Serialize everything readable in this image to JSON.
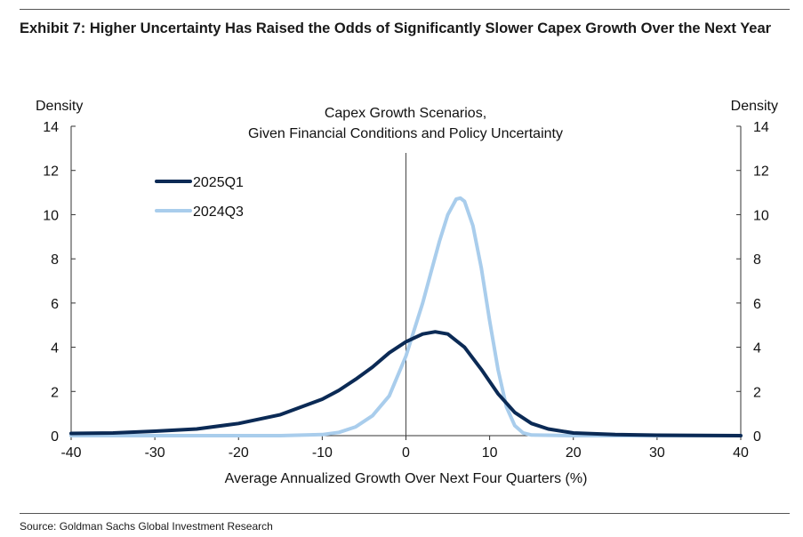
{
  "exhibit": {
    "title": "Exhibit 7: Higher Uncertainty Has Raised the Odds of Significantly Slower Capex Growth Over the Next Year",
    "source": "Source: Goldman Sachs Global Investment Research"
  },
  "chart_data": {
    "type": "line",
    "title_lines": [
      "Capex Growth Scenarios,",
      "Given Financial Conditions and Policy Uncertainty"
    ],
    "xlabel": "Average Annualized Growth Over Next Four Quarters (%)",
    "ylabel_left": "Density",
    "ylabel_right": "Density",
    "xlim": [
      -40,
      40
    ],
    "ylim": [
      0,
      14
    ],
    "x_ticks": [
      -40,
      -30,
      -20,
      -10,
      0,
      10,
      20,
      30,
      40
    ],
    "y_ticks": [
      0,
      2,
      4,
      6,
      8,
      10,
      12,
      14
    ],
    "vertical_reference_x": 0,
    "grid": false,
    "legend_position": "top-left",
    "series": [
      {
        "name": "2025Q1",
        "color": "#0b2a55",
        "x": [
          -40,
          -35,
          -30,
          -25,
          -20,
          -15,
          -10,
          -8,
          -6,
          -4,
          -2,
          0,
          2,
          3.5,
          5,
          7,
          9,
          11,
          13,
          15,
          17,
          20,
          25,
          30,
          35,
          40
        ],
        "y": [
          0.1,
          0.12,
          0.2,
          0.3,
          0.55,
          0.95,
          1.65,
          2.05,
          2.55,
          3.1,
          3.75,
          4.25,
          4.6,
          4.7,
          4.6,
          4.0,
          3.0,
          1.9,
          1.05,
          0.55,
          0.3,
          0.12,
          0.05,
          0.02,
          0.01,
          0.0
        ]
      },
      {
        "name": "2024Q3",
        "color": "#a9cdec",
        "x": [
          -40,
          -15,
          -10,
          -8,
          -6,
          -4,
          -2,
          0,
          2,
          3,
          4,
          5,
          6,
          6.5,
          7,
          8,
          9,
          10,
          11,
          12,
          13,
          14,
          15,
          20,
          40
        ],
        "y": [
          0,
          0,
          0.05,
          0.15,
          0.4,
          0.9,
          1.8,
          3.6,
          6.0,
          7.4,
          8.8,
          10.0,
          10.7,
          10.75,
          10.6,
          9.5,
          7.6,
          5.2,
          3.0,
          1.3,
          0.45,
          0.12,
          0.03,
          0,
          0
        ]
      }
    ]
  }
}
